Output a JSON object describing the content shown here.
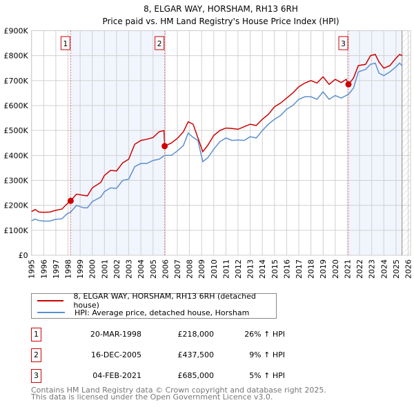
{
  "chart_data": {
    "type": "line",
    "title": "8, ELGAR WAY, HORSHAM, RH13 6RH",
    "subtitle": "Price paid vs. HM Land Registry's House Price Index (HPI)",
    "xlim": [
      1995,
      2026.2
    ],
    "ylim": [
      0,
      900000
    ],
    "x_ticks": [
      "1995",
      "1996",
      "1997",
      "1998",
      "1999",
      "2000",
      "2001",
      "2002",
      "2003",
      "2004",
      "2005",
      "2006",
      "2007",
      "2008",
      "2009",
      "2010",
      "2011",
      "2012",
      "2013",
      "2014",
      "2015",
      "2016",
      "2017",
      "2018",
      "2019",
      "2020",
      "2021",
      "2022",
      "2023",
      "2024",
      "2025",
      "2026"
    ],
    "y_ticks": [
      {
        "value": 0,
        "label": "£0"
      },
      {
        "value": 100000,
        "label": "£100K"
      },
      {
        "value": 200000,
        "label": "£200K"
      },
      {
        "value": 300000,
        "label": "£300K"
      },
      {
        "value": 400000,
        "label": "£400K"
      },
      {
        "value": 500000,
        "label": "£500K"
      },
      {
        "value": 600000,
        "label": "£600K"
      },
      {
        "value": 700000,
        "label": "£700K"
      },
      {
        "value": 800000,
        "label": "£800K"
      },
      {
        "value": 900000,
        "label": "£900K"
      }
    ],
    "grid": true,
    "shaded_ranges": [
      [
        1998.22,
        2005.96
      ],
      [
        2021.09,
        2025.5
      ]
    ],
    "future_hatch_from": 2025.5,
    "series": [
      {
        "name": "8, ELGAR WAY, HORSHAM, RH13 6RH (detached house)",
        "color": "#cc0000",
        "x": [
          1995,
          1995.3,
          1995.6,
          1996,
          1996.5,
          1997,
          1997.5,
          1997.9,
          1998.22,
          1998.7,
          1999.3,
          1999.6,
          2000,
          2000.7,
          2001,
          2001.5,
          2002,
          2002.5,
          2003,
          2003.5,
          2004,
          2004.5,
          2005,
          2005.5,
          2005.9,
          2005.96,
          2006.5,
          2007,
          2007.5,
          2007.9,
          2008.3,
          2008.7,
          2009.1,
          2009.5,
          2010,
          2010.5,
          2011,
          2011.5,
          2012,
          2012.5,
          2013,
          2013.5,
          2014,
          2014.5,
          2015,
          2015.5,
          2016,
          2016.5,
          2017,
          2017.5,
          2018,
          2018.5,
          2019,
          2019.5,
          2020,
          2020.5,
          2020.9,
          2021.09,
          2021.5,
          2021.9,
          2022.5,
          2022.9,
          2023.3,
          2023.6,
          2024,
          2024.5,
          2025,
          2025.3,
          2025.5
        ],
        "y": [
          175000,
          183000,
          173000,
          172000,
          173000,
          180000,
          185000,
          205000,
          218000,
          245000,
          240000,
          238000,
          270000,
          292000,
          320000,
          340000,
          338000,
          370000,
          385000,
          445000,
          460000,
          465000,
          472000,
          495000,
          500000,
          437500,
          450000,
          468000,
          495000,
          535000,
          525000,
          470000,
          415000,
          440000,
          480000,
          500000,
          510000,
          508000,
          505000,
          515000,
          525000,
          520000,
          545000,
          565000,
          595000,
          610000,
          630000,
          650000,
          675000,
          690000,
          700000,
          690000,
          715000,
          685000,
          705000,
          692000,
          705000,
          685000,
          710000,
          760000,
          765000,
          800000,
          805000,
          775000,
          750000,
          760000,
          790000,
          805000,
          800000
        ]
      },
      {
        "name": "HPI: Average price, detached house, Horsham",
        "color": "#5b8fd0",
        "x": [
          1995,
          1995.3,
          1995.6,
          1996,
          1996.5,
          1997,
          1997.5,
          1997.9,
          1998.22,
          1998.7,
          1999.3,
          1999.6,
          2000,
          2000.7,
          2001,
          2001.5,
          2002,
          2002.5,
          2003,
          2003.5,
          2004,
          2004.5,
          2005,
          2005.5,
          2005.96,
          2006.5,
          2007,
          2007.5,
          2007.9,
          2008.3,
          2008.7,
          2009.1,
          2009.5,
          2010,
          2010.5,
          2011,
          2011.5,
          2012,
          2012.5,
          2013,
          2013.5,
          2014,
          2014.5,
          2015,
          2015.5,
          2016,
          2016.5,
          2017,
          2017.5,
          2018,
          2018.5,
          2019,
          2019.5,
          2020,
          2020.5,
          2021.09,
          2021.5,
          2021.9,
          2022.5,
          2022.9,
          2023.3,
          2023.6,
          2024,
          2024.5,
          2025,
          2025.3,
          2025.5
        ],
        "y": [
          138000,
          145000,
          139000,
          137000,
          137000,
          144000,
          146000,
          165000,
          173000,
          200000,
          190000,
          190000,
          215000,
          233000,
          255000,
          270000,
          268000,
          300000,
          305000,
          355000,
          368000,
          368000,
          380000,
          385000,
          400000,
          400000,
          418000,
          440000,
          490000,
          472000,
          460000,
          375000,
          390000,
          425000,
          455000,
          470000,
          460000,
          462000,
          460000,
          475000,
          470000,
          500000,
          525000,
          545000,
          560000,
          585000,
          600000,
          625000,
          635000,
          635000,
          625000,
          655000,
          625000,
          640000,
          630000,
          645000,
          670000,
          735000,
          745000,
          765000,
          770000,
          730000,
          720000,
          735000,
          755000,
          770000,
          760000
        ]
      }
    ],
    "sales": [
      {
        "num": "1",
        "x": 1998.22,
        "price": 218000,
        "date": "20-MAR-1998",
        "price_label": "£218,000",
        "hpi": "26% ↑ HPI"
      },
      {
        "num": "2",
        "x": 2005.96,
        "price": 437500,
        "date": "16-DEC-2005",
        "price_label": "£437,500",
        "hpi": "9% ↑ HPI"
      },
      {
        "num": "3",
        "x": 2021.09,
        "price": 685000,
        "date": "04-FEB-2021",
        "price_label": "£685,000",
        "hpi": "5% ↑ HPI"
      }
    ],
    "legend_placement": "below"
  },
  "legend": {
    "property": "8, ELGAR WAY, HORSHAM, RH13 6RH (detached house)",
    "hpi": "HPI: Average price, detached house, Horsham"
  },
  "footer": {
    "line1": "Contains HM Land Registry data © Crown copyright and database right 2025.",
    "line2": "This data is licensed under the Open Government Licence v3.0."
  }
}
